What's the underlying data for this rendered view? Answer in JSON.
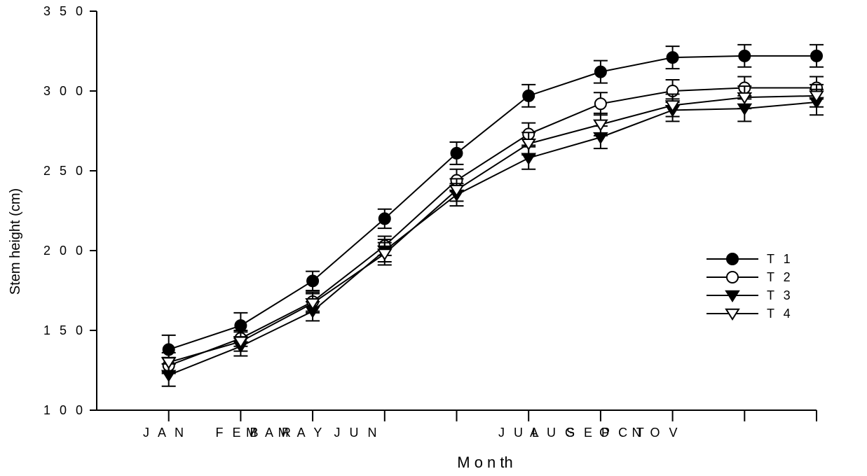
{
  "chart_data": {
    "type": "line",
    "xlabel": "M o n th",
    "ylabel": "Stem height (cm)",
    "ylim": [
      100,
      350
    ],
    "yticks": [
      100,
      150,
      200,
      250,
      300,
      350
    ],
    "ytick_labels": [
      "1 0 0",
      "1 5 0",
      "2 0 0",
      "2 5 0",
      "3 0 0",
      "3 5 0"
    ],
    "x_label_texts": [
      "J A N",
      "F E B",
      "M A R",
      "M A Y",
      "J U N",
      "J U L",
      "A U G",
      "S E P",
      "O C T",
      "N O V"
    ],
    "legend_position": "right",
    "grid": false,
    "series": [
      {
        "name": "T 1",
        "marker": "filled-circle",
        "values": [
          138,
          153,
          181,
          220,
          261,
          297,
          312,
          321,
          322,
          322
        ],
        "errors": [
          9,
          8,
          6,
          6,
          7,
          7,
          7,
          7,
          7,
          7
        ]
      },
      {
        "name": "T 2",
        "marker": "open-circle",
        "values": [
          128,
          145,
          168,
          203,
          244,
          273,
          292,
          300,
          302,
          302
        ],
        "errors": [
          5,
          5,
          6,
          6,
          7,
          7,
          7,
          7,
          7,
          7
        ]
      },
      {
        "name": "T 3",
        "marker": "filled-triangle-down",
        "values": [
          122,
          140,
          162,
          200,
          235,
          258,
          271,
          288,
          289,
          293
        ],
        "errors": [
          7,
          6,
          6,
          7,
          7,
          7,
          7,
          7,
          8,
          8
        ]
      },
      {
        "name": "T 4",
        "marker": "open-triangle-down",
        "values": [
          130,
          143,
          167,
          198,
          238,
          267,
          279,
          291,
          296,
          297
        ],
        "errors": [
          6,
          6,
          6,
          7,
          7,
          7,
          7,
          7,
          7,
          7
        ]
      }
    ]
  }
}
